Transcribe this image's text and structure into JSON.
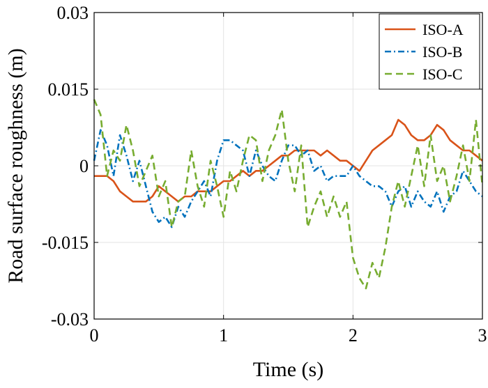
{
  "chart_data": {
    "type": "line",
    "xlabel": "Time (s)",
    "ylabel": "Road surface roughness (m)",
    "xlim": [
      0,
      3
    ],
    "ylim": [
      -0.03,
      0.03
    ],
    "xticks": [
      0,
      1,
      2,
      3
    ],
    "xtick_labels": [
      "0",
      "1",
      "2",
      "3"
    ],
    "yticks": [
      -0.03,
      -0.015,
      0,
      0.015,
      0.03
    ],
    "ytick_labels": [
      "-0.03",
      "-0.015",
      "0",
      "0.015",
      "0.03"
    ],
    "grid": true,
    "legend_position": "top-right",
    "series": [
      {
        "name": "ISO-A",
        "color": "#D95319",
        "style": "solid",
        "x": [
          0,
          0.05,
          0.1,
          0.15,
          0.2,
          0.25,
          0.3,
          0.35,
          0.4,
          0.45,
          0.5,
          0.55,
          0.6,
          0.65,
          0.7,
          0.75,
          0.8,
          0.85,
          0.9,
          0.95,
          1.0,
          1.05,
          1.1,
          1.15,
          1.2,
          1.25,
          1.3,
          1.35,
          1.4,
          1.45,
          1.5,
          1.55,
          1.6,
          1.65,
          1.7,
          1.75,
          1.8,
          1.85,
          1.9,
          1.95,
          2.0,
          2.05,
          2.1,
          2.15,
          2.2,
          2.25,
          2.3,
          2.35,
          2.4,
          2.45,
          2.5,
          2.55,
          2.6,
          2.65,
          2.7,
          2.75,
          2.8,
          2.85,
          2.9,
          2.95,
          3.0
        ],
        "y": [
          -0.002,
          -0.002,
          -0.002,
          -0.003,
          -0.005,
          -0.006,
          -0.007,
          -0.007,
          -0.007,
          -0.006,
          -0.004,
          -0.005,
          -0.006,
          -0.007,
          -0.006,
          -0.006,
          -0.005,
          -0.005,
          -0.005,
          -0.004,
          -0.003,
          -0.003,
          -0.002,
          -0.001,
          -0.002,
          -0.001,
          -0.001,
          0.0,
          0.001,
          0.002,
          0.002,
          0.003,
          0.003,
          0.003,
          0.003,
          0.002,
          0.003,
          0.002,
          0.001,
          0.001,
          0.0,
          -0.001,
          0.001,
          0.003,
          0.004,
          0.005,
          0.006,
          0.009,
          0.008,
          0.006,
          0.005,
          0.005,
          0.006,
          0.008,
          0.007,
          0.005,
          0.004,
          0.003,
          0.003,
          0.002,
          0.001
        ]
      },
      {
        "name": "ISO-B",
        "color": "#0072BD",
        "style": "dashdot",
        "x": [
          0,
          0.05,
          0.1,
          0.15,
          0.2,
          0.25,
          0.3,
          0.35,
          0.4,
          0.45,
          0.5,
          0.55,
          0.6,
          0.65,
          0.7,
          0.75,
          0.8,
          0.85,
          0.9,
          0.95,
          1.0,
          1.05,
          1.1,
          1.15,
          1.2,
          1.25,
          1.3,
          1.35,
          1.4,
          1.45,
          1.5,
          1.55,
          1.6,
          1.65,
          1.7,
          1.75,
          1.8,
          1.85,
          1.9,
          1.95,
          2.0,
          2.05,
          2.1,
          2.15,
          2.2,
          2.25,
          2.3,
          2.35,
          2.4,
          2.45,
          2.5,
          2.55,
          2.6,
          2.65,
          2.7,
          2.75,
          2.8,
          2.85,
          2.9,
          2.95,
          3.0
        ],
        "y": [
          0.001,
          0.007,
          0.004,
          -0.002,
          0.006,
          0.002,
          -0.003,
          0.001,
          -0.004,
          -0.009,
          -0.011,
          -0.01,
          -0.012,
          -0.008,
          -0.01,
          -0.007,
          -0.005,
          -0.003,
          -0.006,
          0.001,
          0.005,
          0.005,
          0.004,
          0.003,
          -0.002,
          0.003,
          0.0,
          -0.002,
          -0.003,
          0.001,
          0.004,
          0.004,
          0.002,
          0.003,
          -0.001,
          0.0,
          -0.003,
          -0.002,
          -0.002,
          -0.002,
          0.0,
          -0.002,
          -0.003,
          -0.004,
          -0.004,
          -0.005,
          -0.008,
          -0.005,
          -0.004,
          -0.008,
          -0.005,
          -0.007,
          -0.008,
          -0.005,
          -0.009,
          -0.006,
          -0.005,
          -0.001,
          -0.003,
          -0.005,
          -0.006
        ]
      },
      {
        "name": "ISO-C",
        "color": "#77AC30",
        "style": "dashed",
        "x": [
          0,
          0.05,
          0.1,
          0.15,
          0.2,
          0.25,
          0.3,
          0.35,
          0.4,
          0.45,
          0.5,
          0.55,
          0.6,
          0.65,
          0.7,
          0.75,
          0.8,
          0.85,
          0.9,
          0.95,
          1.0,
          1.05,
          1.1,
          1.15,
          1.2,
          1.25,
          1.3,
          1.35,
          1.4,
          1.45,
          1.5,
          1.55,
          1.6,
          1.65,
          1.7,
          1.75,
          1.8,
          1.85,
          1.9,
          1.95,
          2.0,
          2.05,
          2.1,
          2.15,
          2.2,
          2.25,
          2.3,
          2.35,
          2.4,
          2.45,
          2.5,
          2.55,
          2.6,
          2.65,
          2.7,
          2.75,
          2.8,
          2.85,
          2.9,
          2.95,
          3.0
        ],
        "y": [
          0.013,
          0.01,
          -0.002,
          0.003,
          0.001,
          0.008,
          0.003,
          -0.004,
          -0.001,
          0.002,
          -0.006,
          -0.003,
          -0.012,
          -0.007,
          -0.006,
          0.003,
          -0.004,
          -0.008,
          0.001,
          -0.004,
          -0.01,
          -0.001,
          -0.005,
          0.001,
          0.006,
          0.005,
          -0.003,
          0.003,
          0.006,
          0.011,
          0.001,
          -0.005,
          0.004,
          -0.012,
          -0.008,
          -0.005,
          -0.01,
          -0.006,
          -0.01,
          -0.007,
          -0.018,
          -0.022,
          -0.024,
          -0.019,
          -0.022,
          -0.016,
          -0.008,
          -0.003,
          -0.008,
          -0.002,
          0.004,
          -0.004,
          0.006,
          -0.003,
          0.0,
          -0.007,
          -0.002,
          0.004,
          -0.003,
          0.009,
          -0.004
        ]
      }
    ]
  }
}
